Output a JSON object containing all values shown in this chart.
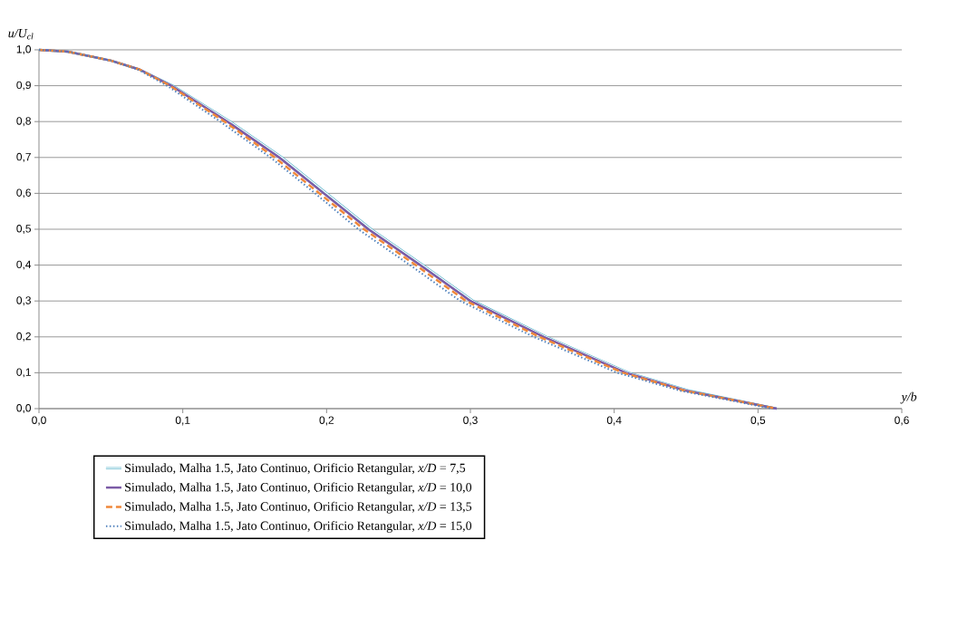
{
  "chart_data": {
    "type": "line",
    "xlabel": "y/b",
    "ylabel": "u/U$_{cl}$",
    "xlim": [
      0,
      0.6
    ],
    "ylim": [
      0,
      1
    ],
    "xticks": [
      {
        "value": 0,
        "label": "0,0"
      },
      {
        "value": 0.1,
        "label": "0,1"
      },
      {
        "value": 0.2,
        "label": "0,2"
      },
      {
        "value": 0.3,
        "label": "0,3"
      },
      {
        "value": 0.4,
        "label": "0,4"
      },
      {
        "value": 0.5,
        "label": "0,5"
      },
      {
        "value": 0.6,
        "label": "0,6"
      }
    ],
    "yticks": [
      {
        "value": 0,
        "label": "0,0"
      },
      {
        "value": 0.1,
        "label": "0,1"
      },
      {
        "value": 0.2,
        "label": "0,2"
      },
      {
        "value": 0.3,
        "label": "0,3"
      },
      {
        "value": 0.4,
        "label": "0,4"
      },
      {
        "value": 0.5,
        "label": "0,5"
      },
      {
        "value": 0.6,
        "label": "0,6"
      },
      {
        "value": 0.7,
        "label": "0,7"
      },
      {
        "value": 0.8,
        "label": "0,8"
      },
      {
        "value": 0.9,
        "label": "0,9"
      },
      {
        "value": 1,
        "label": "1,0"
      }
    ],
    "grid": "y",
    "legend": "bottom",
    "marker": "none",
    "series": [
      {
        "name": "Simulado, Malha 1.5, Jato Continuo, Orificio Retangular, *x/D* = 7,5",
        "color": "#4bacc6",
        "line_style": "solid",
        "x": [
          0,
          0.02,
          0.05,
          0.07,
          0.093,
          0.133,
          0.169,
          0.2,
          0.231,
          0.267,
          0.302,
          0.353,
          0.41,
          0.452,
          0.513
        ],
        "values": [
          1,
          0.995,
          0.97,
          0.945,
          0.9,
          0.8,
          0.7,
          0.6,
          0.5,
          0.4,
          0.3,
          0.2,
          0.1,
          0.05,
          0
        ]
      },
      {
        "name": "Simulado, Malha 1.5, Jato Continuo, Orificio Retangular, *x/D* = 10,0",
        "color": "#7b5ba6",
        "line_style": "solid",
        "x": [
          0,
          0.02,
          0.05,
          0.07,
          0.092,
          0.131,
          0.167,
          0.198,
          0.229,
          0.265,
          0.3,
          0.351,
          0.408,
          0.45,
          0.513
        ],
        "values": [
          1,
          0.995,
          0.97,
          0.945,
          0.9,
          0.8,
          0.7,
          0.6,
          0.5,
          0.4,
          0.3,
          0.2,
          0.1,
          0.05,
          0
        ]
      },
      {
        "name": "Simulado, Malha 1.5, Jato Continuo, Orificio Retangular, *x/D* = 13,5",
        "color": "#f0883a",
        "line_style": "dashed",
        "x": [
          0,
          0.02,
          0.05,
          0.07,
          0.091,
          0.129,
          0.164,
          0.195,
          0.226,
          0.262,
          0.297,
          0.348,
          0.406,
          0.449,
          0.513
        ],
        "values": [
          1,
          0.995,
          0.97,
          0.945,
          0.9,
          0.8,
          0.7,
          0.6,
          0.5,
          0.4,
          0.3,
          0.2,
          0.1,
          0.05,
          0
        ]
      },
      {
        "name": "Simulado, Malha 1.5, Jato Continuo, Orificio Retangular, *x/D* = 15,0",
        "color": "#4f81bd",
        "line_style": "dotted",
        "x": [
          0,
          0.02,
          0.05,
          0.069,
          0.089,
          0.126,
          0.161,
          0.192,
          0.222,
          0.258,
          0.293,
          0.344,
          0.402,
          0.446,
          0.51
        ],
        "values": [
          1,
          0.995,
          0.97,
          0.945,
          0.9,
          0.8,
          0.7,
          0.6,
          0.5,
          0.4,
          0.3,
          0.2,
          0.1,
          0.05,
          0
        ]
      }
    ]
  }
}
